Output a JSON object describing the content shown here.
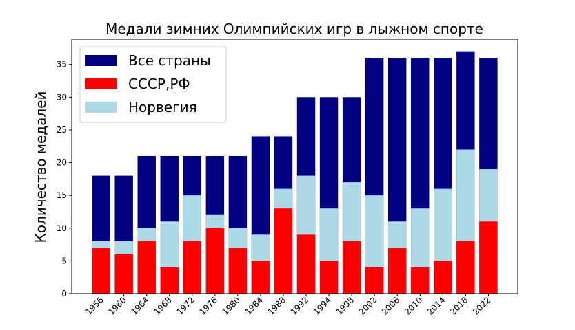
{
  "chart_data": {
    "type": "bar",
    "title": "Медали зимних Олимпийских игр в лыжном спорте",
    "y_label": "Количество медалей",
    "categories": [
      "1956",
      "1960",
      "1964",
      "1968",
      "1972",
      "1976",
      "1980",
      "1984",
      "1988",
      "1992",
      "1994",
      "1998",
      "2002",
      "2006",
      "2010",
      "2014",
      "2018",
      "2022"
    ],
    "series": [
      {
        "name": "Все страны",
        "color": "#000080",
        "values": [
          18,
          18,
          21,
          21,
          21,
          21,
          21,
          24,
          24,
          30,
          30,
          30,
          36,
          36,
          36,
          36,
          37,
          36
        ]
      },
      {
        "name": "СССР,РФ",
        "color": "#ff0000",
        "values": [
          7,
          6,
          8,
          4,
          8,
          10,
          7,
          5,
          13,
          9,
          5,
          8,
          4,
          7,
          4,
          5,
          8,
          11
        ]
      },
      {
        "name": "Норвегия",
        "color": "#add8e6",
        "values": [
          8,
          8,
          10,
          11,
          15,
          12,
          10,
          9,
          16,
          18,
          13,
          17,
          15,
          11,
          13,
          16,
          22,
          19
        ]
      }
    ],
    "ylim": [
      0,
      38.85
    ],
    "yticks": [
      0,
      5,
      10,
      15,
      20,
      25,
      30,
      35
    ],
    "legend": "upper-left"
  }
}
